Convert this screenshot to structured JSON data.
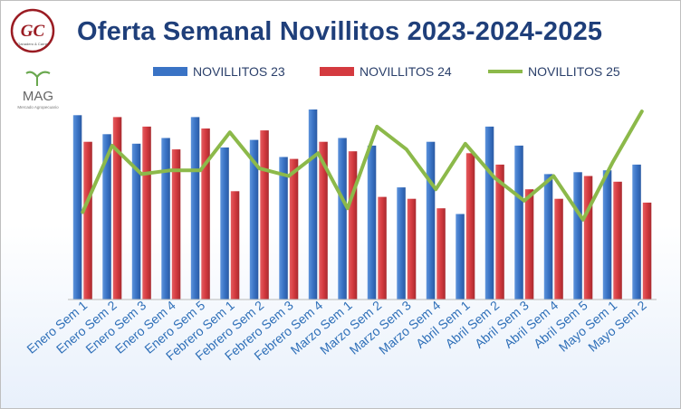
{
  "logos": {
    "gc_text": "GC",
    "gc_caption": "Ganadero & Carne",
    "mag_text": "MAG",
    "mag_caption": "Mercado Agropecuario"
  },
  "chart_data": {
    "type": "bar",
    "title": "Oferta Semanal Novillitos 2023-2024-2025",
    "xlabel": "",
    "ylabel": "",
    "ylim": [
      0,
      100
    ],
    "grid": false,
    "legend": "top",
    "categories": [
      "Enero Sem 1",
      "Enero Sem 2",
      "Enero Sem 3",
      "Enero Sem 4",
      "Enero Sem 5",
      "Febrero Sem 1",
      "Febrero Sem 2",
      "Febrero Sem 3",
      "Febrero Sem 4",
      "Marzo Sem 1",
      "Marzo Sem 2",
      "Marzo Sem 3",
      "Marzo Sem 4",
      "Abril Sem 1",
      "Abril Sem 2",
      "Abril Sem 3",
      "Abril Sem 4",
      "Abril Sem 5",
      "Mayo Sem 1",
      "Mayo Sem 2"
    ],
    "series": [
      {
        "name": "NOVILLITOS 23",
        "kind": "bar",
        "color": "#3a73c5",
        "values": [
          97,
          87,
          82,
          85,
          96,
          80,
          84,
          75,
          100,
          85,
          81,
          59,
          83,
          45,
          91,
          81,
          66,
          67,
          68,
          71
        ]
      },
      {
        "name": "NOVILLITOS 24",
        "kind": "bar",
        "color": "#d43a3f",
        "values": [
          83,
          96,
          91,
          79,
          90,
          57,
          89,
          74,
          83,
          78,
          54,
          53,
          48,
          77,
          71,
          58,
          53,
          65,
          62,
          51
        ]
      },
      {
        "name": "NOVILLITOS 25",
        "kind": "line",
        "color": "#8cb94a",
        "values": [
          46,
          81,
          66,
          68,
          68,
          88,
          69,
          65,
          77,
          48,
          91,
          79,
          58,
          82,
          64,
          52,
          65,
          42,
          72,
          99
        ]
      }
    ]
  }
}
